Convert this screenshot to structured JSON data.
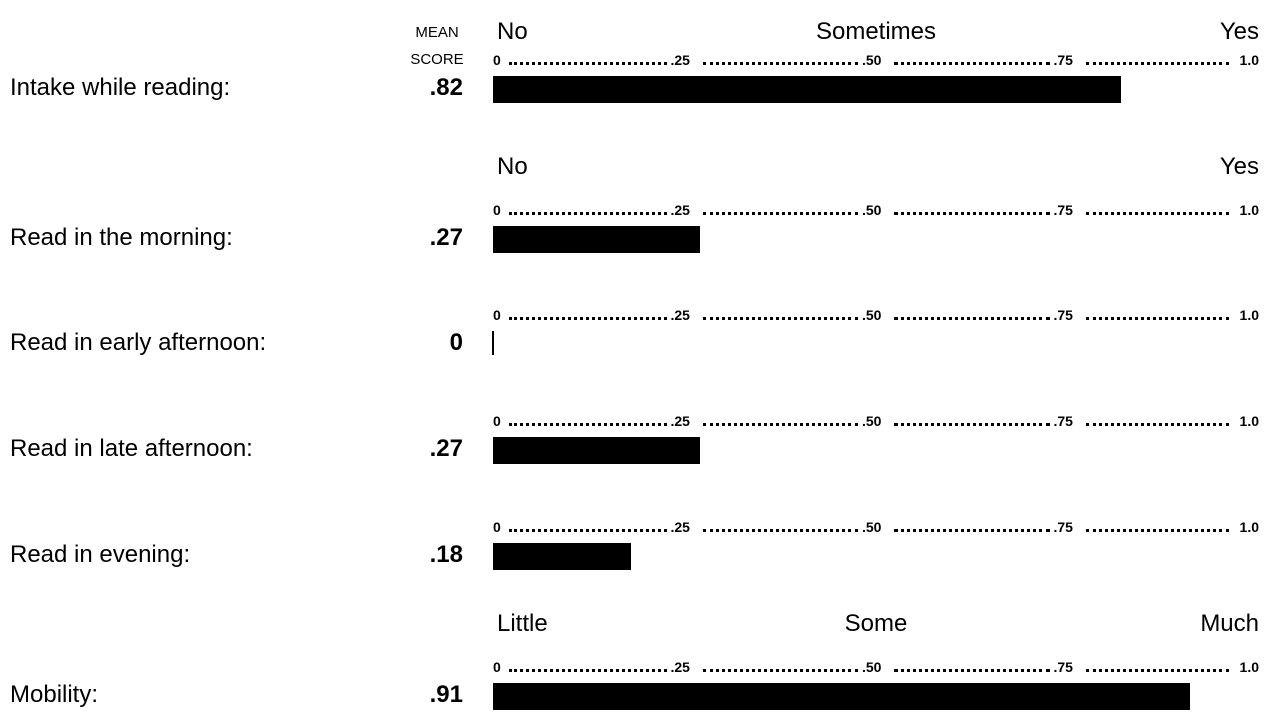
{
  "header": {
    "mean_score_line1": "MEAN",
    "mean_score_line2": "SCORE"
  },
  "chart_data": {
    "type": "bar",
    "orientation": "horizontal",
    "xlim": [
      0,
      1.0
    ],
    "tick_labels": [
      "0",
      ".25",
      ".50",
      ".75",
      "1.0"
    ],
    "tick_values": [
      0,
      0.25,
      0.5,
      0.75,
      1.0
    ],
    "bar_color": "#000000",
    "rows": [
      {
        "label": "Intake while reading:",
        "value": 0.82,
        "score_label": ".82",
        "anchors": [
          "No",
          "Sometimes",
          "Yes"
        ]
      },
      {
        "label": "Read in the morning:",
        "value": 0.27,
        "score_label": ".27",
        "anchors": [
          "No",
          "Yes"
        ]
      },
      {
        "label": "Read in early afternoon:",
        "value": 0,
        "score_label": "0",
        "anchors": []
      },
      {
        "label": "Read in late afternoon:",
        "value": 0.27,
        "score_label": ".27",
        "anchors": []
      },
      {
        "label": "Read in evening:",
        "value": 0.18,
        "score_label": ".18",
        "anchors": []
      },
      {
        "label": "Mobility:",
        "value": 0.91,
        "score_label": ".91",
        "anchors": [
          "Little",
          "Some",
          "Much"
        ]
      }
    ]
  }
}
